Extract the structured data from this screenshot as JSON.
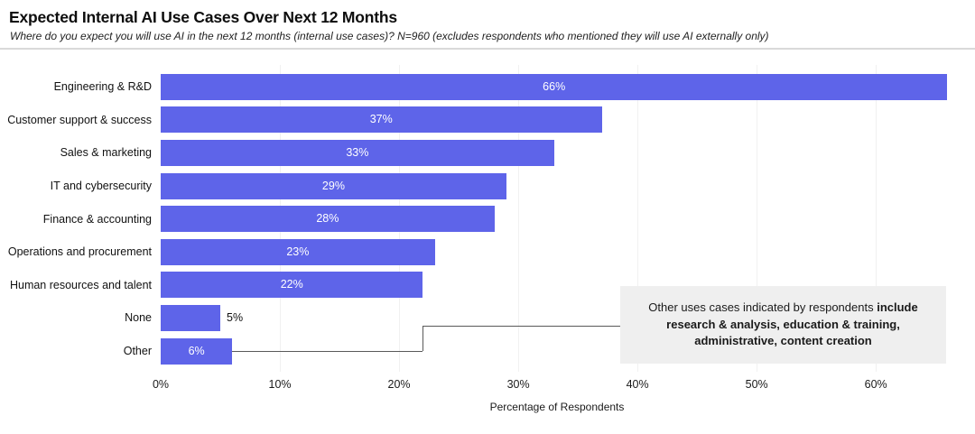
{
  "header": {
    "title": "Expected Internal AI Use Cases Over Next 12 Months",
    "subtitle": "Where do you expect you will use AI in the next 12 months (internal use cases)? N=960 (excludes respondents who mentioned they will use AI externally only)"
  },
  "chart_data": {
    "type": "bar",
    "orientation": "horizontal",
    "title": "Expected Internal AI Use Cases Over Next 12 Months",
    "categories": [
      "Engineering & R&D",
      "Customer support & success",
      "Sales & marketing",
      "IT and cybersecurity",
      "Finance & accounting",
      "Operations and procurement",
      "Human resources and talent",
      "None",
      "Other"
    ],
    "values": [
      66,
      37,
      33,
      29,
      28,
      23,
      22,
      5,
      6
    ],
    "value_labels": [
      "66%",
      "37%",
      "33%",
      "29%",
      "28%",
      "23%",
      "22%",
      "5%",
      "6%"
    ],
    "xlabel": "Percentage of Respondents",
    "xticks": [
      "0%",
      "10%",
      "20%",
      "30%",
      "40%",
      "50%",
      "60%"
    ],
    "xtick_values": [
      0,
      10,
      20,
      30,
      40,
      50,
      60
    ],
    "xlim": [
      0,
      66.5
    ],
    "grid": "vertical gridlines at 10% intervals, no axis line",
    "legend": "none",
    "bar_color": "#5e64e9",
    "bar_label_color_inside": "#ffffff",
    "bar_label_color_outside": "#111111",
    "annotation": {
      "text_regular": "Other uses cases indicated by respondents ",
      "text_bold": "include research & analysis, education & training, administrative, content creation",
      "background": "#efefef",
      "attached_to": "Other",
      "connector_color": "#595959"
    }
  }
}
